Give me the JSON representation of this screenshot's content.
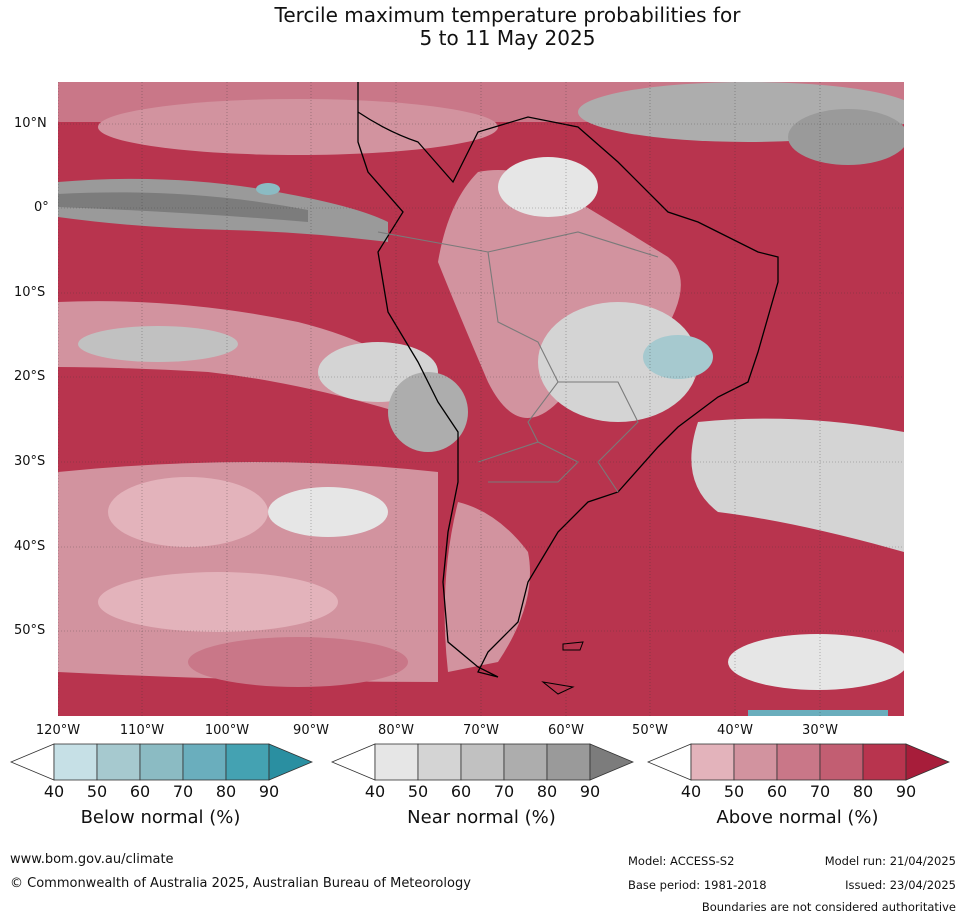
{
  "title": {
    "line1": "Tercile maximum temperature probabilities for",
    "line2": "5 to 11 May 2025"
  },
  "map": {
    "lat_labels": [
      "10°N",
      "0°",
      "10°S",
      "20°S",
      "30°S",
      "40°S",
      "50°S"
    ],
    "lon_labels": [
      "120°W",
      "110°W",
      "100°W",
      "90°W",
      "80°W",
      "70°W",
      "60°W",
      "50°W",
      "40°W",
      "30°W"
    ],
    "colors": {
      "above": [
        "#e3b3bb",
        "#d2939f",
        "#c97788",
        "#c25e72",
        "#b8344e",
        "#a71d3a"
      ],
      "near": [
        "#e6e6e6",
        "#d4d4d4",
        "#c1c1c1",
        "#adadad",
        "#9a9a9a",
        "#7c7c7c"
      ],
      "below": [
        "#c6e0e6",
        "#a6c9cf",
        "#8bbbc3",
        "#6aaebd",
        "#44a2b2",
        "#2a8fa1"
      ],
      "land_border": "#000000",
      "country_border": "#7a7a7a"
    }
  },
  "colorbars": [
    {
      "title": "Below normal (%)",
      "ticks": [
        "40",
        "50",
        "60",
        "70",
        "80",
        "90"
      ],
      "colors": [
        "#c6e0e6",
        "#a6c9cf",
        "#8bbbc3",
        "#6aaebd",
        "#44a2b2",
        "#2a8fa1"
      ]
    },
    {
      "title": "Near normal (%)",
      "ticks": [
        "40",
        "50",
        "60",
        "70",
        "80",
        "90"
      ],
      "colors": [
        "#e6e6e6",
        "#d4d4d4",
        "#c1c1c1",
        "#adadad",
        "#9a9a9a",
        "#7c7c7c"
      ]
    },
    {
      "title": "Above normal (%)",
      "ticks": [
        "40",
        "50",
        "60",
        "70",
        "80",
        "90"
      ],
      "colors": [
        "#e3b3bb",
        "#d2939f",
        "#c97788",
        "#c25e72",
        "#b8344e",
        "#a71d3a"
      ]
    }
  ],
  "footer": {
    "website": "www.bom.gov.au/climate",
    "copyright": "© Commonwealth of Australia 2025, Australian Bureau of Meteorology",
    "model": "Model: ACCESS-S2",
    "model_run": "Model run: 21/04/2025",
    "base_period": "Base period: 1981-2018",
    "issued": "Issued: 23/04/2025",
    "disclaimer": "Boundaries are not considered authoritative"
  }
}
